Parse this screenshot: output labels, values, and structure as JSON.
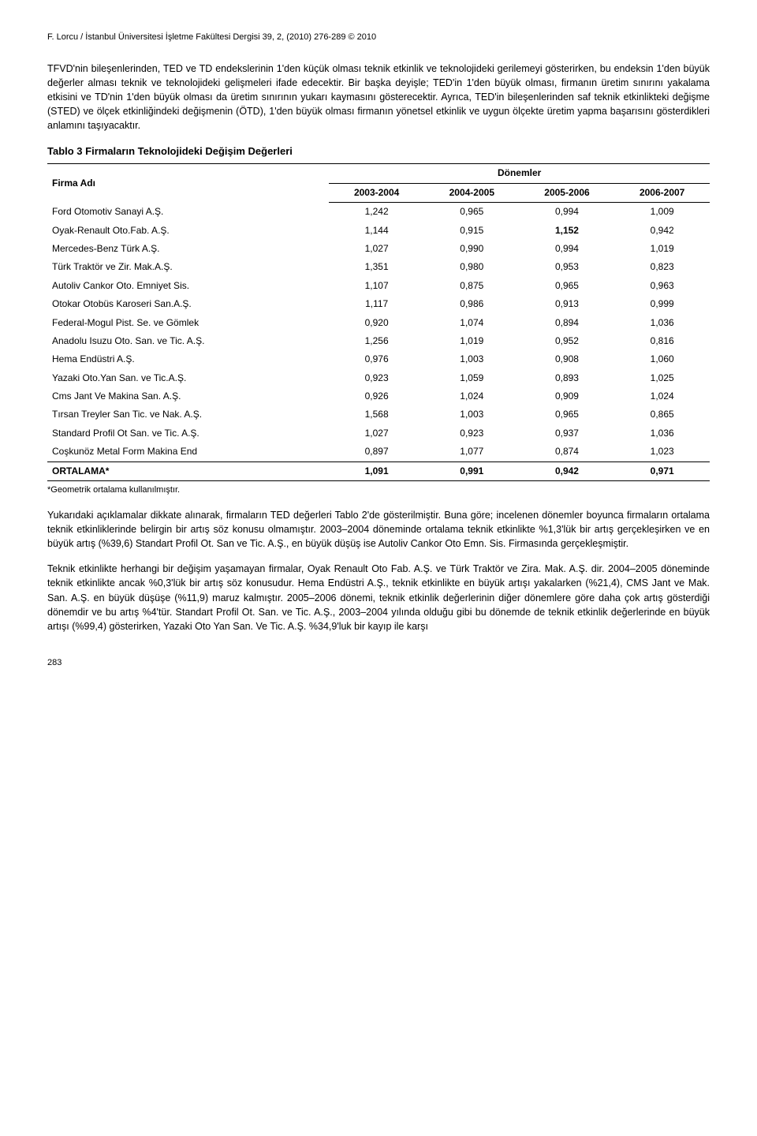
{
  "header": "F. Lorcu / İstanbul Üniversitesi İşletme Fakültesi Dergisi 39, 2, (2010) 276-289 © 2010",
  "para1": "TFVD'nin bileşenlerinden, TED ve TD endekslerinin 1'den küçük olması teknik etkinlik ve teknolojideki gerilemeyi gösterirken, bu endeksin 1'den büyük değerler alması teknik ve teknolojideki gelişmeleri ifade edecektir. Bir başka deyişle; TED'in 1'den büyük olması, firmanın üretim sınırını yakalama etkisini ve TD'nin 1'den büyük olması da üretim sınırının yukarı kaymasını gösterecektir. Ayrıca, TED'in bileşenlerinden saf teknik etkinlikteki değişme (STED) ve ölçek etkinliğindeki değişmenin (ÖTD), 1'den büyük olması firmanın yönetsel etkinlik ve uygun ölçekte üretim yapma başarısını gösterdikleri anlamını taşıyacaktır.",
  "tableTitle": "Tablo 3 Firmaların Teknolojideki Değişim Değerleri",
  "th_firm": "Firma Adı",
  "th_periods": "Dönemler",
  "periods": [
    "2003-2004",
    "2004-2005",
    "2005-2006",
    "2006-2007"
  ],
  "rows": [
    {
      "name": "Ford Otomotiv Sanayi A.Ş.",
      "v": [
        "1,242",
        "0,965",
        "0,994",
        "1,009"
      ]
    },
    {
      "name": "Oyak-Renault Oto.Fab. A.Ş.",
      "v": [
        "1,144",
        "0,915",
        "1,152",
        "0,942"
      ],
      "bold": [
        2
      ]
    },
    {
      "name": "Mercedes-Benz Türk A.Ş.",
      "v": [
        "1,027",
        "0,990",
        "0,994",
        "1,019"
      ]
    },
    {
      "name": "Türk Traktör ve Zir. Mak.A.Ş.",
      "v": [
        "1,351",
        "0,980",
        "0,953",
        "0,823"
      ]
    },
    {
      "name": "Autoliv Cankor Oto. Emniyet Sis.",
      "v": [
        "1,107",
        "0,875",
        "0,965",
        "0,963"
      ]
    },
    {
      "name": "Otokar Otobüs Karoseri San.A.Ş.",
      "v": [
        "1,117",
        "0,986",
        "0,913",
        "0,999"
      ]
    },
    {
      "name": "Federal-Mogul Pist. Se. ve Gömlek",
      "v": [
        "0,920",
        "1,074",
        "0,894",
        "1,036"
      ]
    },
    {
      "name": "Anadolu Isuzu Oto. San. ve Tic. A.Ş.",
      "v": [
        "1,256",
        "1,019",
        "0,952",
        "0,816"
      ]
    },
    {
      "name": "Hema Endüstri A.Ş.",
      "v": [
        "0,976",
        "1,003",
        "0,908",
        "1,060"
      ]
    },
    {
      "name": "Yazaki Oto.Yan San. ve Tic.A.Ş.",
      "v": [
        "0,923",
        "1,059",
        "0,893",
        "1,025"
      ]
    },
    {
      "name": "Cms Jant Ve Makina San. A.Ş.",
      "v": [
        "0,926",
        "1,024",
        "0,909",
        "1,024"
      ]
    },
    {
      "name": "Tırsan Treyler San Tic. ve Nak. A.Ş.",
      "v": [
        "1,568",
        "1,003",
        "0,965",
        "0,865"
      ]
    },
    {
      "name": "Standard Profil Ot San. ve Tic. A.Ş.",
      "v": [
        "1,027",
        "0,923",
        "0,937",
        "1,036"
      ]
    },
    {
      "name": "Coşkunöz Metal Form Makina End",
      "v": [
        "0,897",
        "1,077",
        "0,874",
        "1,023"
      ]
    }
  ],
  "avg": {
    "name": "ORTALAMA*",
    "v": [
      "1,091",
      "0,991",
      "0,942",
      "0,971"
    ]
  },
  "footnote": "*Geometrik ortalama kullanılmıştır.",
  "para2": "Yukarıdaki açıklamalar dikkate alınarak, firmaların TED değerleri Tablo 2'de gösterilmiştir. Buna göre; incelenen dönemler boyunca firmaların ortalama teknik etkinliklerinde belirgin bir artış söz konusu olmamıştır. 2003–2004 döneminde ortalama teknik etkinlikte %1,3'lük bir artış gerçekleşirken ve en büyük artış (%39,6) Standart Profil Ot. San ve Tic. A.Ş., en büyük düşüş ise Autoliv Cankor Oto Emn. Sis. Firmasında gerçekleşmiştir.",
  "para3": "Teknik etkinlikte herhangi bir değişim yaşamayan firmalar, Oyak Renault Oto Fab. A.Ş. ve Türk Traktör ve Zira. Mak. A.Ş. dir. 2004–2005 döneminde teknik etkinlikte ancak %0,3'lük bir artış söz konusudur. Hema Endüstri A.Ş., teknik etkinlikte en büyük artışı yakalarken (%21,4), CMS Jant ve Mak. San. A.Ş. en büyük düşüşe (%11,9) maruz kalmıştır. 2005–2006 dönemi, teknik etkinlik değerlerinin diğer dönemlere göre daha çok artış gösterdiği dönemdir ve bu artış %4'tür. Standart Profil Ot. San. ve Tic. A.Ş., 2003–2004 yılında olduğu gibi bu dönemde de teknik etkinlik değerlerinde en büyük artışı (%99,4) gösterirken, Yazaki Oto Yan San. Ve Tic. A.Ş. %34,9'luk bir kayıp ile karşı",
  "pageNum": "283"
}
